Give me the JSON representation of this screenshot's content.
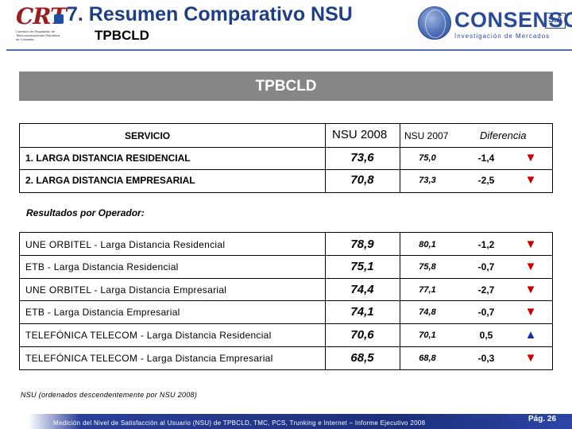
{
  "header": {
    "title": "7. Resumen Comparativo NSU",
    "subtitle": "TPBCLD",
    "left_logo": {
      "mark": "CRT",
      "tagline": "Comisión de Regulación de Telecomunicaciones República de Colombia"
    },
    "right_logo": {
      "name": "CONSENSO",
      "suffix": "S.A",
      "tagline": "Investigación de Mercados"
    }
  },
  "band_title": "TPBCLD",
  "table": {
    "columns": {
      "servicio": "SERVICIO",
      "nsu2008": "NSU 2008",
      "nsu2007": "NSU 2007",
      "diferencia": "Diferencia"
    },
    "services": [
      {
        "name": "1. LARGA DISTANCIA RESIDENCIAL",
        "nsu2008": "73,6",
        "nsu2007": "75,0",
        "diff": "-1,4",
        "trend": "▼"
      },
      {
        "name": "2. LARGA DISTANCIA EMPRESARIAL",
        "nsu2008": "70,8",
        "nsu2007": "73,3",
        "diff": "-2,5",
        "trend": "▼"
      }
    ],
    "section_label": "Resultados por Operador:",
    "operators": [
      {
        "name": "UNE ORBITEL - Larga Distancia Residencial",
        "nsu2008": "78,9",
        "nsu2007": "80,1",
        "diff": "-1,2",
        "trend": "▼"
      },
      {
        "name": "ETB - Larga Distancia Residencial",
        "nsu2008": "75,1",
        "nsu2007": "75,8",
        "diff": "-0,7",
        "trend": "▼"
      },
      {
        "name": "UNE ORBITEL - Larga Distancia Empresarial",
        "nsu2008": "74,4",
        "nsu2007": "77,1",
        "diff": "-2,7",
        "trend": "▼"
      },
      {
        "name": "ETB - Larga Distancia Empresarial",
        "nsu2008": "74,1",
        "nsu2007": "74,8",
        "diff": "-0,7",
        "trend": "▼"
      },
      {
        "name": "TELEFÓNICA TELECOM - Larga Distancia Residencial",
        "nsu2008": "70,6",
        "nsu2007": "70,1",
        "diff": "0,5",
        "trend": "▲"
      },
      {
        "name": "TELEFÓNICA TELECOM - Larga Distancia Empresarial",
        "nsu2008": "68,5",
        "nsu2007": "68,8",
        "diff": "-0,3",
        "trend": "▼"
      }
    ]
  },
  "footnote": "NSU (ordenados descendentemente por NSU 2008)",
  "footer": {
    "text": "Medición del Nivel de Satisfacción al Usuario (NSU) de TPBCLD, TMC, PCS, Trunking e Internet – Informe Ejecutivo 2008",
    "page": "Pág. 26"
  },
  "colors": {
    "title": "#1e3f84",
    "band": "#868686",
    "trend_down": "#cc0000",
    "trend_up": "#1a2fa0",
    "footer": "#1c2f7d"
  }
}
